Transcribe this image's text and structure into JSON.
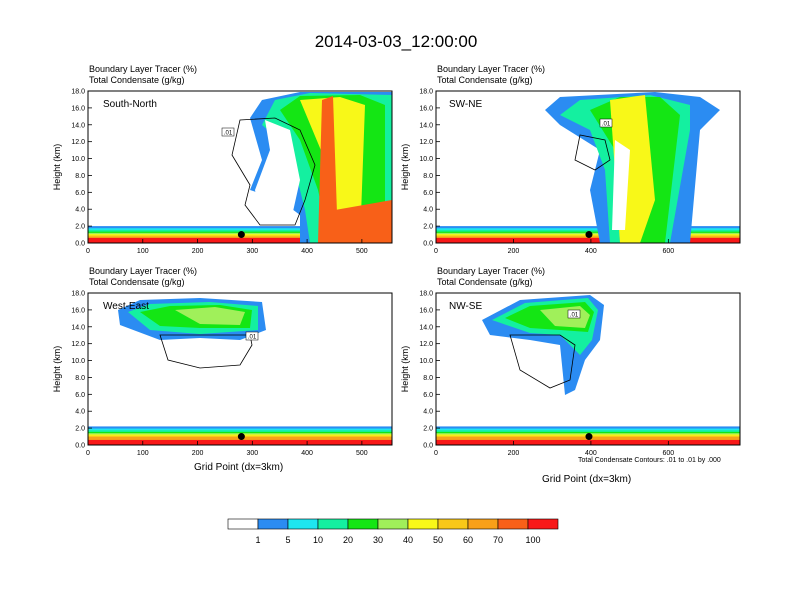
{
  "title": "2014-03-03_12:00:00",
  "panel_titles": {
    "tracer": "Boundary Layer Tracer   (%)",
    "condensate": "Total Condensate   (g/kg)"
  },
  "y_axis_label": "Height (km)",
  "x_axis_label": "Grid Point (dx=3km)",
  "contour_note": "Total Condensate Contours: .01 to .01 by .000",
  "colorbar": {
    "colors": [
      "#ffffff",
      "#2b8cf2",
      "#1ee6f0",
      "#14f0a0",
      "#14e614",
      "#a0f05a",
      "#f8f818",
      "#f8c818",
      "#f8a018",
      "#f86018",
      "#f81818"
    ],
    "labels": [
      "1",
      "5",
      "10",
      "20",
      "30",
      "40",
      "50",
      "60",
      "70",
      "100"
    ]
  },
  "chart_data": [
    {
      "type": "heatmap",
      "panel": "South-North",
      "title_lines": [
        "Boundary Layer Tracer   (%)",
        "Total Condensate   (g/kg)"
      ],
      "xlim": [
        0,
        555
      ],
      "ylim": [
        0,
        18
      ],
      "xticks": [
        "0",
        "100",
        "200",
        "300",
        "400",
        "500"
      ],
      "yticks": [
        "0.0",
        "2.0",
        "4.0",
        "6.0",
        "8.0",
        "10.0",
        "12.0",
        "14.0",
        "16.0",
        "18.0"
      ],
      "ylabel": "Height (km)",
      "contour_label": ".01",
      "marker_x": 280,
      "marker_y": 1.0
    },
    {
      "type": "heatmap",
      "panel": "SW-NE",
      "title_lines": [
        "Boundary Layer Tracer   (%)",
        "Total Condensate   (g/kg)"
      ],
      "xlim": [
        0,
        785
      ],
      "ylim": [
        0,
        18
      ],
      "xticks": [
        "0",
        "200",
        "400",
        "600"
      ],
      "yticks": [
        "0.0",
        "2.0",
        "4.0",
        "6.0",
        "8.0",
        "10.0",
        "12.0",
        "14.0",
        "16.0",
        "18.0"
      ],
      "ylabel": "Height (km)",
      "contour_label": ".01",
      "marker_x": 395,
      "marker_y": 1.0
    },
    {
      "type": "heatmap",
      "panel": "West-East",
      "title_lines": [
        "Boundary Layer Tracer   (%)",
        "Total Condensate   (g/kg)"
      ],
      "xlim": [
        0,
        555
      ],
      "ylim": [
        0,
        18
      ],
      "xticks": [
        "0",
        "100",
        "200",
        "300",
        "400",
        "500"
      ],
      "yticks": [
        "0.0",
        "2.0",
        "4.0",
        "6.0",
        "8.0",
        "10.0",
        "12.0",
        "14.0",
        "16.0",
        "18.0"
      ],
      "ylabel": "Height (km)",
      "xlabel": "Grid Point (dx=3km)",
      "contour_label": ".01",
      "marker_x": 280,
      "marker_y": 1.0
    },
    {
      "type": "heatmap",
      "panel": "NW-SE",
      "title_lines": [
        "Boundary Layer Tracer   (%)",
        "Total Condensate   (g/kg)"
      ],
      "xlim": [
        0,
        785
      ],
      "ylim": [
        0,
        18
      ],
      "xticks": [
        "0",
        "200",
        "400",
        "600"
      ],
      "yticks": [
        "0.0",
        "2.0",
        "4.0",
        "6.0",
        "8.0",
        "10.0",
        "12.0",
        "14.0",
        "16.0",
        "18.0"
      ],
      "ylabel": "Height (km)",
      "xlabel": "Grid Point (dx=3km)",
      "contour_label": ".01",
      "marker_x": 395,
      "marker_y": 1.0
    }
  ]
}
